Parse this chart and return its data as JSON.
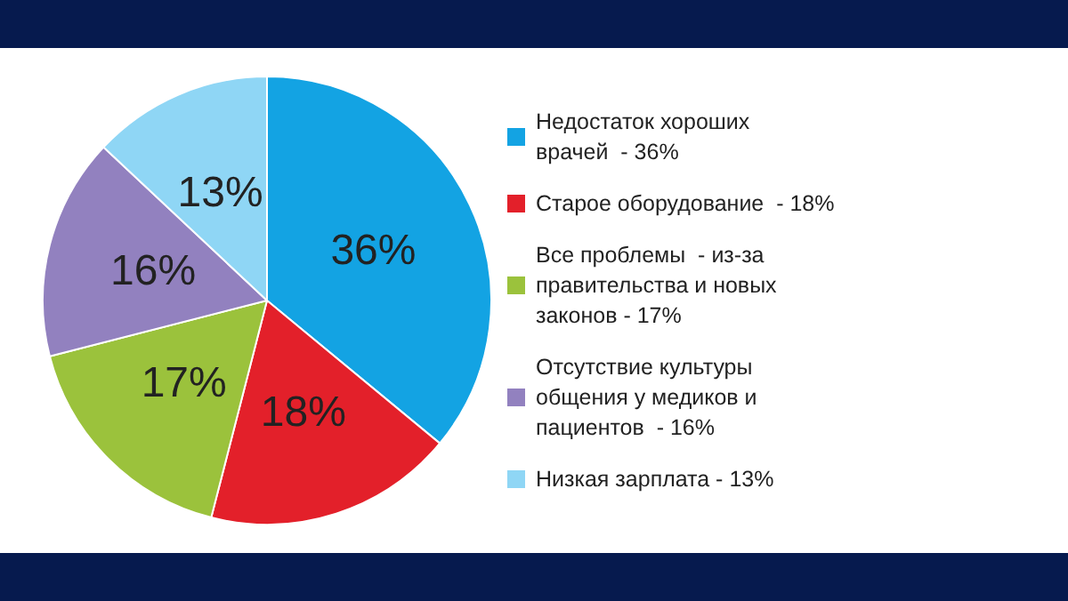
{
  "chart_data": {
    "type": "pie",
    "categories": [
      "Недостаток хороших врачей  - 36%",
      "Старое оборудование  - 18%",
      "Все проблемы  - из-за правительства и новых законов - 17%",
      "Отсутствие культуры общения у медиков и пациентов  - 16%",
      "Низкая зарплата - 13%"
    ],
    "values": [
      36,
      18,
      17,
      16,
      13
    ],
    "colors": [
      "#13a3e3",
      "#e3202a",
      "#9bc23c",
      "#9281bf",
      "#8fd6f5"
    ],
    "value_labels": [
      "36%",
      "18%",
      "17%",
      "16%",
      "13%"
    ],
    "legend": "right"
  }
}
